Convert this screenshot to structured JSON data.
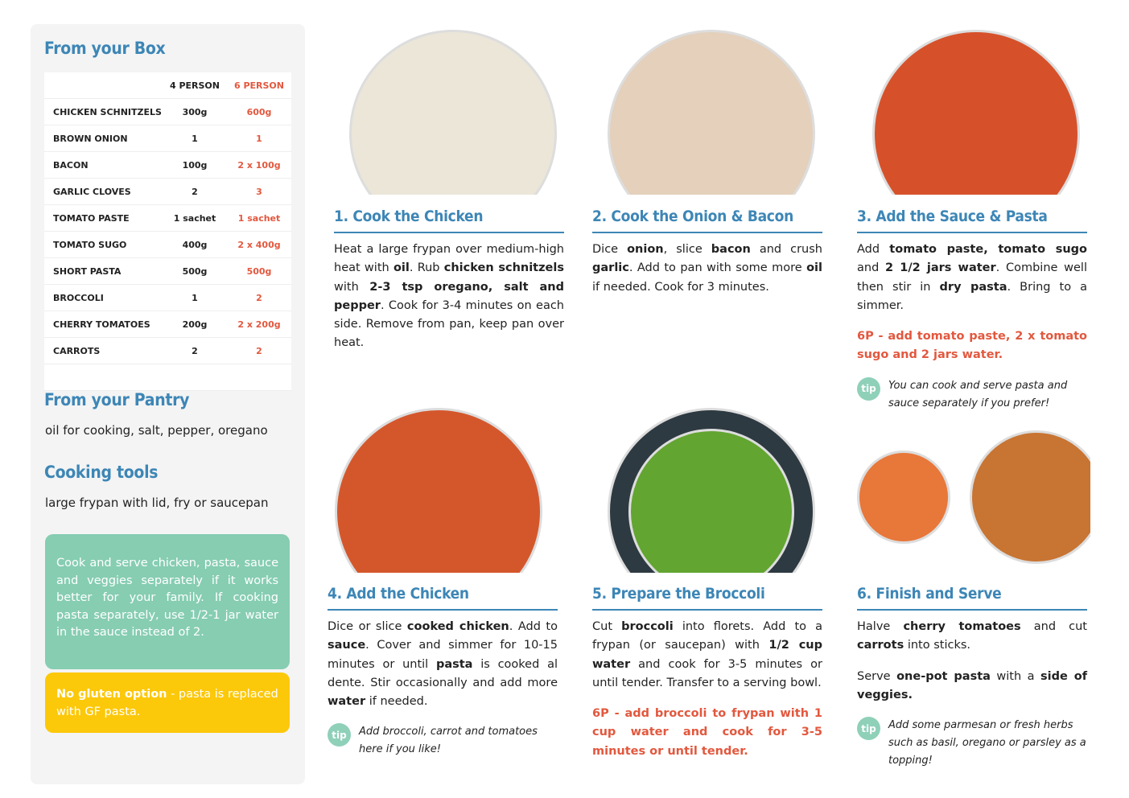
{
  "sidebar": {
    "box_title": "From your Box",
    "table": {
      "head": {
        "four": "4 PERSON",
        "six": "6 PERSON"
      },
      "rows": [
        [
          "CHICKEN SCHNITZELS",
          "300g",
          "600g"
        ],
        [
          "BROWN ONION",
          "1",
          "1"
        ],
        [
          "BACON",
          "100g",
          "2 x 100g"
        ],
        [
          "GARLIC CLOVES",
          "2",
          "3"
        ],
        [
          "TOMATO PASTE",
          "1 sachet",
          "1 sachet"
        ],
        [
          "TOMATO SUGO",
          "400g",
          "2 x 400g"
        ],
        [
          "SHORT PASTA",
          "500g",
          "500g"
        ],
        [
          "BROCCOLI",
          "1",
          "2"
        ],
        [
          "CHERRY TOMATOES",
          "200g",
          "2 x 200g"
        ],
        [
          "CARROTS",
          "2",
          "2"
        ]
      ]
    },
    "pantry_title": "From your Pantry",
    "pantry_text": "oil for cooking, salt, pepper, oregano",
    "tools_title": "Cooking tools",
    "tools_text": "large frypan with lid, fry or saucepan",
    "note": "Cook and serve chicken, pasta, sauce and veggies separately if it works better for your family. If cooking pasta separately, use 1/2-1 jar water in the sauce instead of 2.",
    "gluten": [
      {
        "text": "No gluten option",
        "b": true
      },
      {
        "text": " - pasta is replaced with GF pasta."
      }
    ]
  },
  "tip_badge": "tip",
  "steps": [
    {
      "title": "1. Cook the Chicken",
      "body": [
        [
          {
            "text": "Heat a large frypan over medium-high heat with "
          },
          {
            "text": "oil",
            "b": true
          },
          {
            "text": ". Rub "
          },
          {
            "text": "chicken schnitzels",
            "b": true
          },
          {
            "text": " with "
          },
          {
            "text": "2-3 tsp oregano, salt and pepper",
            "b": true
          },
          {
            "text": ". Cook for 3-4 minutes on each side. Remove from pan, keep pan over heat."
          }
        ]
      ]
    },
    {
      "title": "2. Cook the Onion & Bacon",
      "body": [
        [
          {
            "text": "Dice "
          },
          {
            "text": "onion",
            "b": true
          },
          {
            "text": ", slice "
          },
          {
            "text": "bacon",
            "b": true
          },
          {
            "text": " and crush "
          },
          {
            "text": "garlic",
            "b": true
          },
          {
            "text": ". Add to pan with some more "
          },
          {
            "text": "oil",
            "b": true
          },
          {
            "text": " if needed. Cook for 3 minutes."
          }
        ]
      ]
    },
    {
      "title": "3. Add the Sauce & Pasta",
      "body": [
        [
          {
            "text": "Add "
          },
          {
            "text": "tomato paste, tomato sugo",
            "b": true
          },
          {
            "text": " and "
          },
          {
            "text": "2 1/2 jars water",
            "b": true
          },
          {
            "text": ". Combine well then stir in "
          },
          {
            "text": "dry pasta",
            "b": true
          },
          {
            "text": ". Bring to a simmer."
          }
        ]
      ],
      "six_person": "6P - add tomato paste, 2 x tomato sugo and 2 jars water.",
      "tip": "You can cook and serve pasta and sauce separately if you prefer!"
    },
    {
      "title": "4. Add the Chicken",
      "body": [
        [
          {
            "text": "Dice or slice "
          },
          {
            "text": "cooked chicken",
            "b": true
          },
          {
            "text": ". Add to "
          },
          {
            "text": "sauce",
            "b": true
          },
          {
            "text": ". Cover and simmer for 10-15 minutes or until "
          },
          {
            "text": "pasta",
            "b": true
          },
          {
            "text": " is cooked al dente. Stir occasionally and add more "
          },
          {
            "text": "water",
            "b": true
          },
          {
            "text": " if needed."
          }
        ]
      ],
      "tip": "Add broccoli, carrot and tomatoes here if you like!"
    },
    {
      "title": "5. Prepare the Broccoli",
      "body": [
        [
          {
            "text": "Cut "
          },
          {
            "text": "broccoli",
            "b": true
          },
          {
            "text": " into florets. Add to a frypan (or saucepan) with "
          },
          {
            "text": "1/2 cup water",
            "b": true
          },
          {
            "text": " and cook for 3-5 minutes or until tender. Transfer to a serving bowl."
          }
        ]
      ],
      "six_person": "6P - add broccoli to frypan with 1 cup water and cook for 3-5 minutes or until tender."
    },
    {
      "title": "6. Finish and Serve",
      "body": [
        [
          {
            "text": "Halve "
          },
          {
            "text": "cherry tomatoes",
            "b": true
          },
          {
            "text": " and cut "
          },
          {
            "text": "carrots",
            "b": true
          },
          {
            "text": " into sticks."
          }
        ],
        [
          {
            "text": "Serve "
          },
          {
            "text": "one-pot pasta",
            "b": true
          },
          {
            "text": " with a "
          },
          {
            "text": "side of veggies.",
            "b": true
          }
        ]
      ],
      "tip": "Add some parmesan or fresh herbs such as basil, oregano or parsley as a topping!"
    }
  ]
}
